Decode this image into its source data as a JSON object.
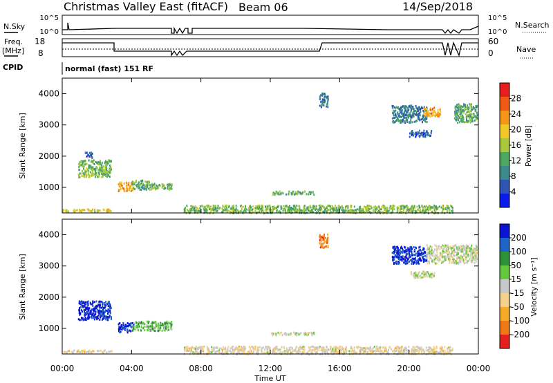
{
  "title": {
    "station": "Christmas Valley East (fitACF)",
    "beam": "Beam 06",
    "date": "14/Sep/2018"
  },
  "top_panel": {
    "nsky_label": "N.Sky",
    "nsky_ticks": [
      "10^5",
      "10^0"
    ],
    "nsearch_label": "N.Search",
    "nsearch_ticks": [
      "10^5",
      "10^0"
    ],
    "freq_label_1": "Freq.",
    "freq_label_2": "[MHz]",
    "freq_ticks": [
      "18",
      "8"
    ],
    "nave_label": "Nave",
    "nave_ticks": [
      "60",
      "0"
    ],
    "cpid_label": "CPID",
    "cpid_value": "normal (fast) 151 RF"
  },
  "colors": {
    "power_scale": [
      "#0a1ae8",
      "#2e55b4",
      "#3c8a8c",
      "#4ca860",
      "#aac83c",
      "#f0c828",
      "#f59618",
      "#f05a14",
      "#e61e1e"
    ],
    "velocity_scale": [
      "#0a14d2",
      "#1e64c8",
      "#2d9137",
      "#64c83c",
      "#c8c8c8",
      "#f5d28c",
      "#f5aa28",
      "#f07814",
      "#e61e1e"
    ]
  },
  "x_axis": {
    "label": "Time UT",
    "ticks": [
      "00:00",
      "04:00",
      "08:00",
      "12:00",
      "16:00",
      "20:00",
      "00:00"
    ]
  },
  "chart_data": [
    {
      "type": "heatmap",
      "name_printed": "Power",
      "xlabel": "Time UT",
      "ylabel": "Slant Range [km]",
      "xlim": [
        0,
        24
      ],
      "ylim": [
        180,
        4500
      ],
      "yticks": [
        "1000",
        "2000",
        "3000",
        "4000"
      ],
      "colorbar_label": "Power [dB]",
      "colorbar_ticks": [
        "4",
        "8",
        "12",
        "16",
        "20",
        "24",
        "28"
      ],
      "colorbar_range": [
        0,
        32
      ],
      "clusters": [
        {
          "t": [
            0.0,
            2.9
          ],
          "r": [
            250,
            330
          ],
          "v": 18
        },
        {
          "t": [
            0.9,
            2.8
          ],
          "r": [
            1350,
            1900
          ],
          "v": 14
        },
        {
          "t": [
            1.3,
            1.7
          ],
          "r": [
            1950,
            2150
          ],
          "v": 6
        },
        {
          "t": [
            3.2,
            4.1
          ],
          "r": [
            900,
            1200
          ],
          "v": 22
        },
        {
          "t": [
            4.0,
            5.0
          ],
          "r": [
            950,
            1250
          ],
          "v": 12
        },
        {
          "t": [
            5.0,
            6.3
          ],
          "r": [
            950,
            1150
          ],
          "v": 14
        },
        {
          "t": [
            7.0,
            22.5
          ],
          "r": [
            200,
            450
          ],
          "v": 14
        },
        {
          "t": [
            12.0,
            14.5
          ],
          "r": [
            800,
            900
          ],
          "v": 12
        },
        {
          "t": [
            14.8,
            15.3
          ],
          "r": [
            3600,
            4050
          ],
          "v": 8
        },
        {
          "t": [
            19.0,
            21.0
          ],
          "r": [
            3100,
            3650
          ],
          "v": 8
        },
        {
          "t": [
            20.8,
            21.8
          ],
          "r": [
            3300,
            3600
          ],
          "v": 22
        },
        {
          "t": [
            22.6,
            23.9
          ],
          "r": [
            3100,
            3700
          ],
          "v": 12
        },
        {
          "t": [
            20.0,
            21.3
          ],
          "r": [
            2650,
            2850
          ],
          "v": 6
        }
      ]
    },
    {
      "type": "heatmap",
      "name_printed": "Velocity",
      "xlabel": "Time UT",
      "ylabel": "Slant Range [km]",
      "xlim": [
        0,
        24
      ],
      "ylim": [
        180,
        4500
      ],
      "yticks": [
        "1000",
        "2000",
        "3000",
        "4000"
      ],
      "colorbar_label": "Velocity [m s⁻¹]",
      "colorbar_ticks": [
        "200",
        "100",
        "50",
        "15",
        "-15",
        "-50",
        "-100",
        "-200"
      ],
      "colorbar_range": [
        -250,
        250
      ],
      "clusters": [
        {
          "t": [
            0.0,
            2.9
          ],
          "r": [
            250,
            330
          ],
          "v": -40
        },
        {
          "t": [
            0.9,
            2.8
          ],
          "r": [
            1300,
            1900
          ],
          "v": 220
        },
        {
          "t": [
            3.2,
            4.1
          ],
          "r": [
            900,
            1200
          ],
          "v": 200
        },
        {
          "t": [
            4.0,
            6.3
          ],
          "r": [
            950,
            1250
          ],
          "v": 60
        },
        {
          "t": [
            7.0,
            22.5
          ],
          "r": [
            200,
            450
          ],
          "v": -30
        },
        {
          "t": [
            12.0,
            14.5
          ],
          "r": [
            800,
            900
          ],
          "v": 0
        },
        {
          "t": [
            14.8,
            15.3
          ],
          "r": [
            3600,
            4050
          ],
          "v": -150
        },
        {
          "t": [
            19.0,
            21.0
          ],
          "r": [
            3100,
            3650
          ],
          "v": 220
        },
        {
          "t": [
            21.0,
            23.9
          ],
          "r": [
            3100,
            3700
          ],
          "v": 0
        },
        {
          "t": [
            20.0,
            21.5
          ],
          "r": [
            2650,
            2850
          ],
          "v": 0
        }
      ]
    }
  ]
}
